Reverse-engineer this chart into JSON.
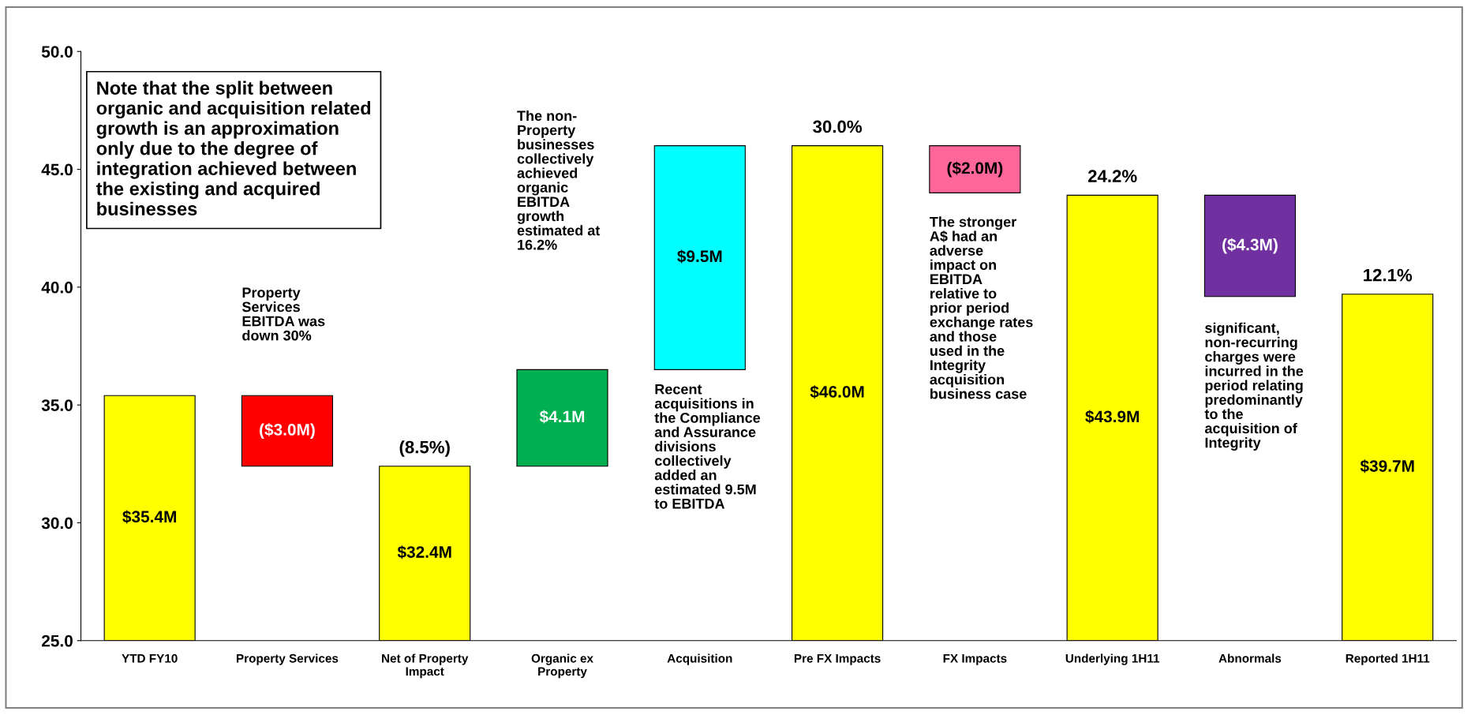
{
  "chart_data": {
    "type": "bar",
    "categories": [
      "YTD FY10",
      "Property Services",
      "Net of Property\nImpact",
      "Organic ex\nProperty",
      "Acquisition",
      "Pre FX Impacts",
      "FX Impacts",
      "Underlying 1H11",
      "Abnormals",
      "Reported 1H11"
    ],
    "values": [
      10.4,
      3.0,
      7.4,
      4.1,
      9.5,
      21.0,
      2.0,
      18.9,
      4.3,
      14.7
    ],
    "base": [
      25,
      32.4,
      25,
      32.4,
      36.5,
      25,
      44.0,
      25,
      39.6,
      25
    ],
    "colors": [
      "#ffff00",
      "#ff0000",
      "#ffff00",
      "#00b050",
      "#00ffff",
      "#ffff00",
      "#ff6699",
      "#ffff00",
      "#7030a0",
      "#ffff00"
    ],
    "value_labels": [
      "$35.4M",
      "($3.0M)",
      "$32.4M",
      "$4.1M",
      "$9.5M",
      "$46.0M",
      "($2.0M)",
      "$43.9M",
      "($4.3M)",
      "$39.7M"
    ],
    "ylim": [
      25,
      50
    ],
    "yticks": [
      {
        "value": 25,
        "label": "25.0"
      },
      {
        "value": 30,
        "label": "30.0"
      },
      {
        "value": 35,
        "label": "35.0"
      },
      {
        "value": 40,
        "label": "40.0"
      },
      {
        "value": 45,
        "label": "45.0"
      },
      {
        "value": 50,
        "label": "50.0"
      }
    ],
    "grid": false,
    "legend": false,
    "annotations": [
      "Note that the split between\norganic and acquisition related\ngrowth is an approximation\nonly due to the degree of\nintegration achieved between\nthe existing and acquired\nbusinesses",
      {
        "text": "(8.5%)",
        "x": "Net of Property\nImpact",
        "y": 32.4
      },
      {
        "text": "30.0%",
        "x": "Pre FX Impacts",
        "y": 46.0
      },
      {
        "text": "24.2%",
        "x": "Underlying 1H11",
        "y": 43.9
      },
      {
        "text": "12.1%",
        "x": "Reported 1H11",
        "y": 39.7
      },
      "Property\nServices\nEBITDA was\ndown 30%",
      "The non-\nProperty\nbusinesses\ncollectively\nachieved\norganic\nEBITDA\ngrowth\nestimated at\n16.2%",
      "Recent\nacquisitions in\nthe Compliance\nand Assurance\ndivisions\ncollectively\nadded an\nestimated 9.5M\nto EBITDA",
      "The stronger\nA$ had an\nadverse\nimpact on\nEBITDA\nrelative to\nprior period\nexchange rates\nand those\nused in the\nIntegrity\nacquisition\nbusiness case",
      "significant,\nnon-recurring\ncharges were\nincurred in the\nperiod relating\npredominantly\nto the\nacquisition of\nIntegrity"
    ]
  }
}
